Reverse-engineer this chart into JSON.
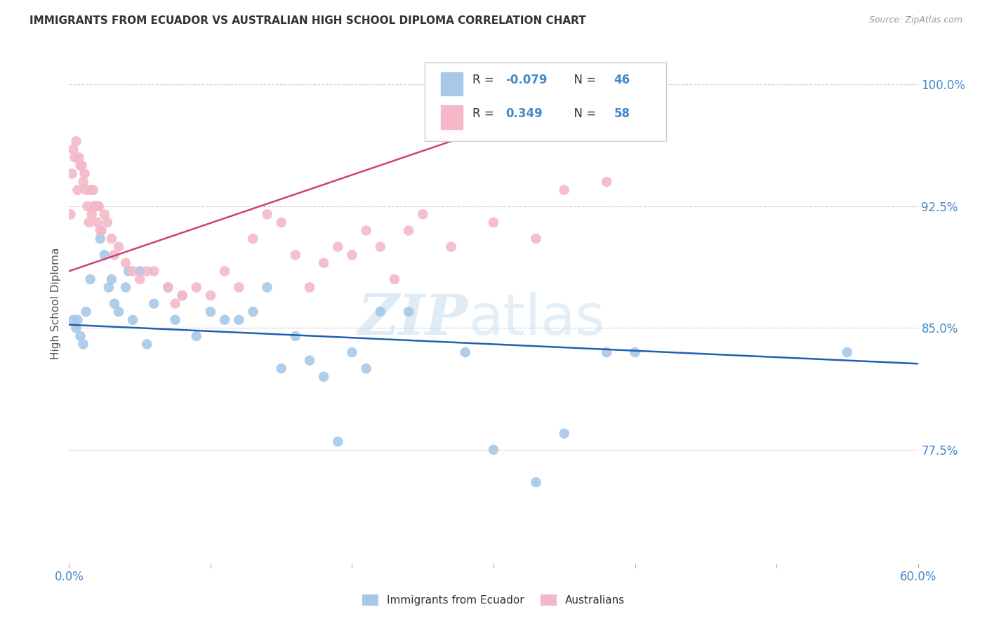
{
  "title": "IMMIGRANTS FROM ECUADOR VS AUSTRALIAN HIGH SCHOOL DIPLOMA CORRELATION CHART",
  "source": "Source: ZipAtlas.com",
  "ylabel": "High School Diploma",
  "yticks": [
    100.0,
    92.5,
    85.0,
    77.5
  ],
  "ytick_labels": [
    "100.0%",
    "92.5%",
    "85.0%",
    "77.5%"
  ],
  "xmin": 0.0,
  "xmax": 60.0,
  "ymin": 70.5,
  "ymax": 102.5,
  "color_blue": "#a8c8e8",
  "color_pink": "#f4b8c8",
  "color_blue_line": "#2060b0",
  "color_pink_line": "#d04070",
  "color_axis_labels": "#4488cc",
  "ecuador_x": [
    0.3,
    0.5,
    0.6,
    0.8,
    1.0,
    1.2,
    1.5,
    1.8,
    2.0,
    2.2,
    2.5,
    2.8,
    3.0,
    3.2,
    3.5,
    4.0,
    4.2,
    4.5,
    5.0,
    5.5,
    6.0,
    7.0,
    7.5,
    8.0,
    9.0,
    10.0,
    11.0,
    12.0,
    13.0,
    14.0,
    15.0,
    16.0,
    17.0,
    18.0,
    19.0,
    20.0,
    21.0,
    22.0,
    24.0,
    28.0,
    30.0,
    33.0,
    35.0,
    38.0,
    40.0,
    55.0
  ],
  "ecuador_y": [
    85.5,
    85.0,
    85.5,
    84.5,
    84.0,
    86.0,
    88.0,
    92.5,
    92.5,
    90.5,
    89.5,
    87.5,
    88.0,
    86.5,
    86.0,
    87.5,
    88.5,
    85.5,
    88.5,
    84.0,
    86.5,
    87.5,
    85.5,
    87.0,
    84.5,
    86.0,
    85.5,
    85.5,
    86.0,
    87.5,
    82.5,
    84.5,
    83.0,
    82.0,
    78.0,
    83.5,
    82.5,
    86.0,
    86.0,
    83.5,
    77.5,
    75.5,
    78.5,
    83.5,
    83.5,
    83.5
  ],
  "australia_x": [
    0.1,
    0.2,
    0.3,
    0.4,
    0.5,
    0.6,
    0.7,
    0.8,
    0.9,
    1.0,
    1.1,
    1.2,
    1.3,
    1.4,
    1.5,
    1.6,
    1.7,
    1.8,
    1.9,
    2.0,
    2.1,
    2.2,
    2.3,
    2.5,
    2.7,
    3.0,
    3.2,
    3.5,
    4.0,
    4.5,
    5.0,
    5.5,
    6.0,
    7.0,
    7.5,
    8.0,
    9.0,
    10.0,
    11.0,
    12.0,
    13.0,
    14.0,
    15.0,
    16.0,
    17.0,
    18.0,
    19.0,
    20.0,
    21.0,
    22.0,
    23.0,
    24.0,
    25.0,
    27.0,
    30.0,
    33.0,
    35.0,
    38.0
  ],
  "australia_y": [
    92.0,
    94.5,
    96.0,
    95.5,
    96.5,
    93.5,
    95.5,
    95.0,
    95.0,
    94.0,
    94.5,
    93.5,
    92.5,
    91.5,
    93.5,
    92.0,
    93.5,
    92.5,
    92.5,
    91.5,
    92.5,
    91.0,
    91.0,
    92.0,
    91.5,
    90.5,
    89.5,
    90.0,
    89.0,
    88.5,
    88.0,
    88.5,
    88.5,
    87.5,
    86.5,
    87.0,
    87.5,
    87.0,
    88.5,
    87.5,
    90.5,
    92.0,
    91.5,
    89.5,
    87.5,
    89.0,
    90.0,
    89.5,
    91.0,
    90.0,
    88.0,
    91.0,
    92.0,
    90.0,
    91.5,
    90.5,
    93.5,
    94.0
  ],
  "blue_trendline_x": [
    0.0,
    60.0
  ],
  "blue_trendline_y": [
    85.2,
    82.8
  ],
  "pink_trendline_x": [
    0.0,
    27.0
  ],
  "pink_trendline_y": [
    88.5,
    96.5
  ]
}
